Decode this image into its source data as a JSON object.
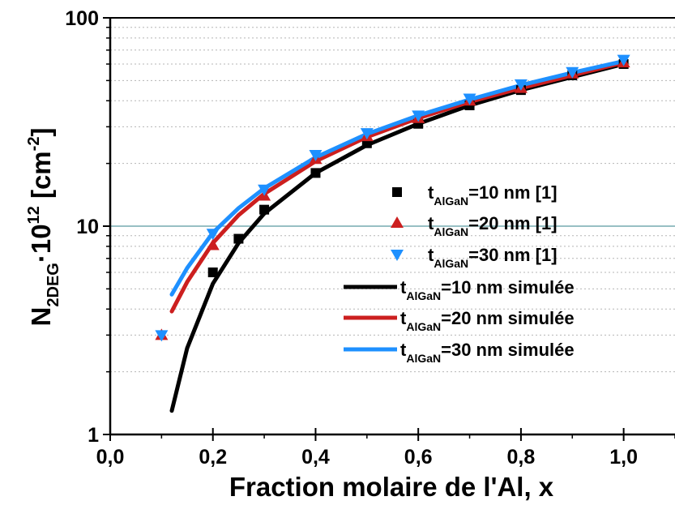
{
  "chart_data": {
    "type": "scatter",
    "xlabel": "Fraction molaire de l'Al, x",
    "ylabel": {
      "main": "N",
      "sub": "2DEG",
      "mid": "·10",
      "sup": "12",
      "unit_open": " [cm",
      "unit_sup": "-2",
      "unit_close": "]"
    },
    "xlim": [
      0.0,
      1.1
    ],
    "ylim": [
      1,
      100
    ],
    "yscale": "log",
    "x_ticks": [
      "0,0",
      "0,2",
      "0,4",
      "0,6",
      "0,8",
      "1,0"
    ],
    "x_tick_values": [
      0.0,
      0.2,
      0.4,
      0.6,
      0.8,
      1.0
    ],
    "y_ticks": [
      "1",
      "10",
      "100"
    ],
    "y_tick_values": [
      1,
      10,
      100
    ],
    "grid": "horizontal dotted minor gridlines",
    "reference_line": {
      "y": 10,
      "color": "#5b9aa0"
    },
    "legend_position": "right-center",
    "series": [
      {
        "name": "t_AlGaN=10 nm [1]",
        "label_base": "t",
        "label_sub": "AlGaN",
        "label_rest": "=10 nm [1]",
        "kind": "markers",
        "marker": "square",
        "color": "#000000",
        "x": [
          0.2,
          0.25,
          0.3,
          0.4,
          0.5,
          0.6,
          0.7,
          0.8,
          0.9,
          1.0
        ],
        "y": [
          6.0,
          8.7,
          12.0,
          18.0,
          25.0,
          31.0,
          38.0,
          45.0,
          53.0,
          60.0
        ]
      },
      {
        "name": "t_AlGaN=20 nm [1]",
        "label_base": "t",
        "label_sub": "AlGaN",
        "label_rest": "=20 nm [1]",
        "kind": "markers",
        "marker": "triangle-up",
        "color": "#cc1f1f",
        "x": [
          0.1,
          0.2,
          0.3,
          0.4,
          0.5,
          0.6,
          0.7,
          0.8,
          0.9,
          1.0
        ],
        "y": [
          3.0,
          8.1,
          14.0,
          21.0,
          27.0,
          33.0,
          40.0,
          46.0,
          54.0,
          61.0
        ]
      },
      {
        "name": "t_AlGaN=30 nm [1]",
        "label_base": "t",
        "label_sub": "AlGaN",
        "label_rest": "=30 nm [1]",
        "kind": "markers",
        "marker": "triangle-down",
        "color": "#1e90ff",
        "x": [
          0.1,
          0.2,
          0.3,
          0.4,
          0.5,
          0.6,
          0.7,
          0.8,
          0.9,
          1.0
        ],
        "y": [
          3.0,
          9.2,
          15.0,
          22.0,
          28.0,
          34.0,
          41.0,
          48.0,
          55.0,
          63.0
        ]
      },
      {
        "name": "t_AlGaN=10 nm simulée",
        "label_base": "t",
        "label_sub": "AlGaN",
        "label_rest": "=10 nm simulée",
        "kind": "line",
        "color": "#000000",
        "x": [
          0.12,
          0.15,
          0.2,
          0.25,
          0.3,
          0.4,
          0.5,
          0.6,
          0.7,
          0.8,
          0.9,
          1.0
        ],
        "y": [
          1.3,
          2.6,
          5.3,
          8.3,
          11.5,
          18.0,
          24.5,
          31.0,
          38.0,
          45.0,
          52.0,
          60.0
        ]
      },
      {
        "name": "t_AlGaN=20 nm simulée",
        "label_base": "t",
        "label_sub": "AlGaN",
        "label_rest": "=20 nm simulée",
        "kind": "line",
        "color": "#cc1f1f",
        "x": [
          0.12,
          0.15,
          0.2,
          0.25,
          0.3,
          0.4,
          0.5,
          0.6,
          0.7,
          0.8,
          0.9,
          1.0
        ],
        "y": [
          3.9,
          5.4,
          8.3,
          11.3,
          14.3,
          20.5,
          26.8,
          33.0,
          39.5,
          46.0,
          53.0,
          61.0
        ]
      },
      {
        "name": "t_AlGaN=30 nm simulée",
        "label_base": "t",
        "label_sub": "AlGaN",
        "label_rest": "=30 nm simulée",
        "kind": "line",
        "color": "#1e90ff",
        "x": [
          0.12,
          0.15,
          0.2,
          0.25,
          0.3,
          0.4,
          0.5,
          0.6,
          0.7,
          0.8,
          0.9,
          1.0
        ],
        "y": [
          4.7,
          6.3,
          9.3,
          12.2,
          15.2,
          21.4,
          27.7,
          34.0,
          40.5,
          47.5,
          54.5,
          62.0
        ]
      }
    ]
  }
}
